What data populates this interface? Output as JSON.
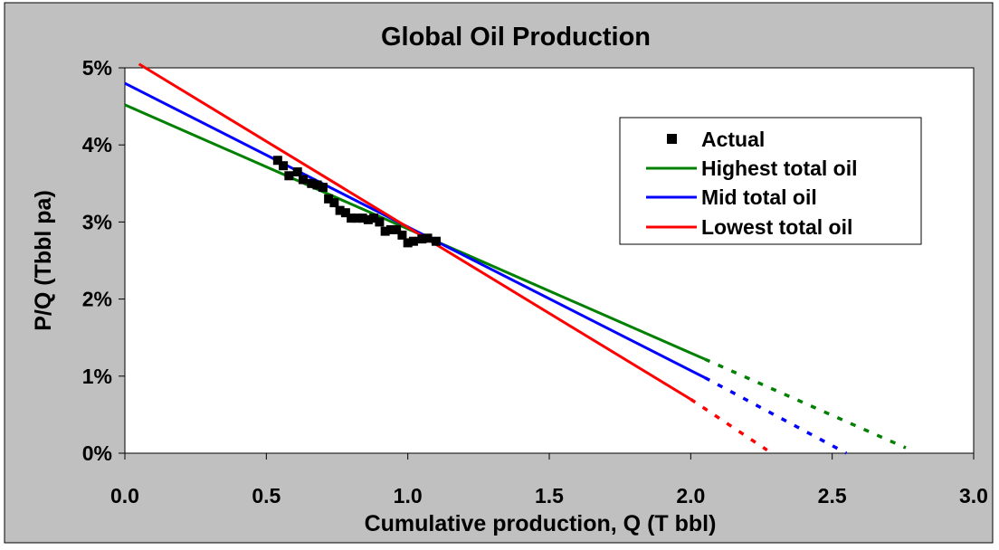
{
  "chart_data": {
    "type": "line",
    "title": "Global Oil Production",
    "xlabel": "Cumulative production, Q (T bbl)",
    "ylabel": "P/Q  (Tbbl pa)",
    "xlim": [
      0,
      3
    ],
    "ylim": [
      0,
      5
    ],
    "x_ticks": [
      "0.0",
      "0.5",
      "1.0",
      "1.5",
      "2.0",
      "2.5",
      "3.0"
    ],
    "y_ticks": [
      "0%",
      "1%",
      "2%",
      "3%",
      "4%",
      "5%"
    ],
    "grid": false,
    "legend_position": "top-right",
    "background_color": "#c0c0c0",
    "plot_background_color": "#ffffff",
    "series": [
      {
        "name": "Actual",
        "kind": "markers",
        "color": "#000000",
        "points": [
          [
            0.54,
            3.8
          ],
          [
            0.56,
            3.73
          ],
          [
            0.58,
            3.6
          ],
          [
            0.61,
            3.65
          ],
          [
            0.63,
            3.55
          ],
          [
            0.66,
            3.5
          ],
          [
            0.68,
            3.48
          ],
          [
            0.7,
            3.45
          ],
          [
            0.72,
            3.3
          ],
          [
            0.74,
            3.25
          ],
          [
            0.76,
            3.15
          ],
          [
            0.78,
            3.12
          ],
          [
            0.8,
            3.05
          ],
          [
            0.82,
            3.05
          ],
          [
            0.84,
            3.05
          ],
          [
            0.86,
            3.03
          ],
          [
            0.88,
            3.05
          ],
          [
            0.9,
            3.0
          ],
          [
            0.92,
            2.88
          ],
          [
            0.94,
            2.9
          ],
          [
            0.96,
            2.9
          ],
          [
            0.98,
            2.83
          ],
          [
            1.0,
            2.73
          ],
          [
            1.02,
            2.75
          ],
          [
            1.05,
            2.78
          ],
          [
            1.07,
            2.79
          ],
          [
            1.1,
            2.75
          ]
        ]
      },
      {
        "name": "Highest total oil",
        "color": "#008000",
        "solid": [
          [
            0.0,
            4.52
          ],
          [
            2.05,
            1.22
          ]
        ],
        "dotted": [
          [
            2.05,
            1.22
          ],
          [
            2.76,
            0.07
          ]
        ]
      },
      {
        "name": "Mid total oil",
        "color": "#0000ff",
        "solid": [
          [
            0.0,
            4.8
          ],
          [
            2.05,
            0.98
          ]
        ],
        "dotted": [
          [
            2.05,
            0.98
          ],
          [
            2.55,
            0.0
          ]
        ]
      },
      {
        "name": "Lowest total oil",
        "color": "#ff0000",
        "solid": [
          [
            0.05,
            5.05
          ],
          [
            2.0,
            0.7
          ]
        ],
        "dotted": [
          [
            2.0,
            0.7
          ],
          [
            2.27,
            0.04
          ]
        ]
      }
    ]
  }
}
